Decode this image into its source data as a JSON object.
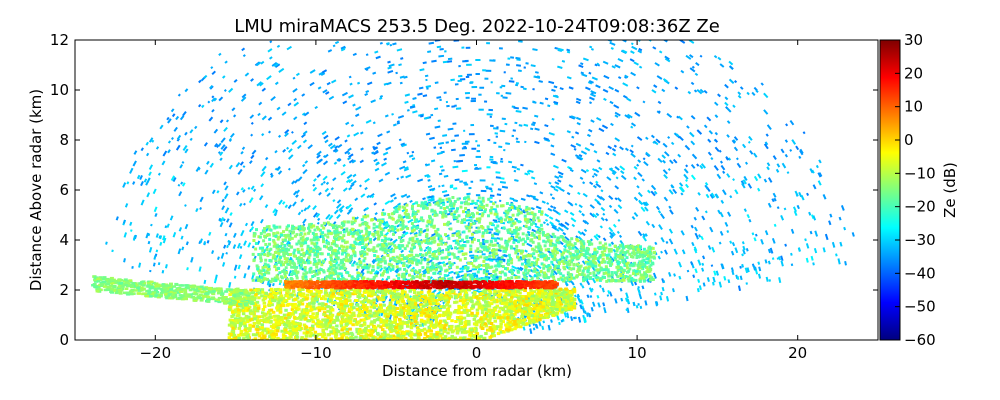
{
  "chart_data": {
    "type": "heatmap",
    "title": "LMU miraMACS 253.5 Deg. 2022-10-24T09:08:36Z  Ze",
    "xlabel": "Distance from radar (km)",
    "ylabel": "Distance Above radar  (km)",
    "colorbar_label": "Ze (dB)",
    "xlim": [
      -25,
      25
    ],
    "ylim": [
      0,
      12
    ],
    "clim": [
      -60,
      30
    ],
    "x_ticks": [
      -20,
      -10,
      0,
      10,
      20
    ],
    "x_tick_labels": [
      "−20",
      "−10",
      "0",
      "10",
      "20"
    ],
    "y_ticks": [
      0,
      2,
      4,
      6,
      8,
      10,
      12
    ],
    "y_tick_labels": [
      "0",
      "2",
      "4",
      "6",
      "8",
      "10",
      "12"
    ],
    "colorbar_ticks": [
      30,
      20,
      10,
      0,
      -10,
      -20,
      -30,
      -40,
      -50,
      -60
    ],
    "colorbar_tick_labels": [
      "30",
      "20",
      "10",
      "0",
      "−10",
      "−20",
      "−30",
      "−40",
      "−50",
      "−60"
    ],
    "colormap": [
      "#00007f",
      "#0000ff",
      "#007fff",
      "#00ffff",
      "#7fff7f",
      "#ffff00",
      "#ff7f00",
      "#ff0000",
      "#7f0000"
    ],
    "grid": false,
    "features": [
      {
        "name": "background noise",
        "ze_db": -30,
        "height_km": [
          0,
          12
        ]
      },
      {
        "name": "upper cloud",
        "ze_db": -18,
        "height_km": [
          2.5,
          5.8
        ],
        "x_km": [
          -14,
          11
        ]
      },
      {
        "name": "melting layer bright band",
        "ze_db": 20,
        "height_km": [
          2.1,
          2.4
        ],
        "x_km": [
          -12,
          5
        ]
      },
      {
        "name": "precipitation below",
        "ze_db": -8,
        "height_km": [
          0,
          2.1
        ],
        "x_km": [
          -15.5,
          6
        ]
      },
      {
        "name": "low-elevation strip",
        "ze_db": -14,
        "height_km": [
          1.8,
          2.6
        ],
        "x_km": [
          -24,
          -15
        ]
      }
    ]
  }
}
